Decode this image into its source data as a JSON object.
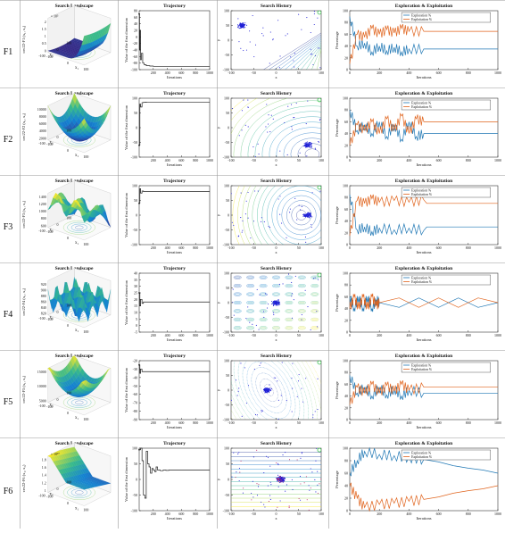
{
  "figure": {
    "row_labels": [
      "F1",
      "F2",
      "F3",
      "F4",
      "F5",
      "F6"
    ],
    "column_titles": [
      "Search Landscape",
      "Trajectory",
      "Search History",
      "Exploration & Exploitation"
    ]
  },
  "colors": {
    "trajectory_line": "#222222",
    "history_points": "#1f1fd6",
    "best_point": "#36c24a",
    "exploration": "#1f77b4",
    "exploitation": "#e0631c",
    "surface_low": "#3b1f8f",
    "surface_high": "#f7e825"
  },
  "chart_data": [
    {
      "row": "F1",
      "type": "surface",
      "title": "Search Landscape",
      "zlabel": "cec22-F1 (x₁, x₂)",
      "xlabel": "x₁",
      "ylabel": "x₂",
      "zscale_label": "× 10⁵",
      "zticks": [
        "2",
        "1.5",
        "1",
        "0.5",
        "0"
      ],
      "xticks": [
        "-100",
        "0",
        "100"
      ],
      "yticks": [
        "100",
        "0",
        "-100"
      ]
    },
    {
      "row": "F1",
      "type": "line",
      "title": "Trajectory",
      "xlabel": "Iterations",
      "ylabel": "Value of the first dimension",
      "xlim": [
        0,
        1000
      ],
      "ylim": [
        -100,
        80
      ],
      "xticks": [
        "200",
        "400",
        "600",
        "800",
        "1000"
      ],
      "yticks": [
        "80",
        "60",
        "40",
        "20",
        "0",
        "-20",
        "-40",
        "-60",
        "-80",
        "-100"
      ],
      "x": [
        0,
        5,
        10,
        20,
        30,
        50,
        70,
        100,
        150,
        200,
        1000
      ],
      "y": [
        70,
        -40,
        20,
        -70,
        -50,
        -80,
        -85,
        -88,
        -89,
        -90,
        -90
      ]
    },
    {
      "row": "F1",
      "type": "scatter",
      "title": "Search History",
      "xlabel": "x",
      "ylabel": "y",
      "xlim": [
        -100,
        100
      ],
      "ylim": [
        -100,
        100
      ],
      "xticks": [
        "-100",
        "-50",
        "0",
        "50",
        "100"
      ],
      "yticks": [
        "100",
        "50",
        "0",
        "-50",
        "-100"
      ]
    },
    {
      "row": "F1",
      "type": "line",
      "title": "Exploration & Exploitation",
      "xlabel": "Iterations",
      "ylabel": "Percentage",
      "xlim": [
        0,
        1000
      ],
      "ylim": [
        0,
        100
      ],
      "xticks": [
        "0",
        "200",
        "400",
        "600",
        "800",
        "1000"
      ],
      "yticks": [
        "100",
        "80",
        "60",
        "40",
        "20",
        "0"
      ],
      "legend": [
        "Exploration %",
        "Exploitation %"
      ],
      "x": [
        0,
        50,
        100,
        150,
        200,
        250,
        300,
        350,
        400,
        500,
        1000
      ],
      "series": [
        {
          "name": "Exploration %",
          "values": [
            90,
            40,
            45,
            30,
            40,
            32,
            38,
            30,
            35,
            35,
            35
          ]
        },
        {
          "name": "Exploitation %",
          "values": [
            10,
            60,
            55,
            70,
            60,
            68,
            62,
            70,
            65,
            65,
            65
          ]
        }
      ]
    },
    {
      "row": "F2",
      "type": "surface",
      "title": "Search Landscape",
      "zlabel": "cec22-F2 (x₁, x₂)",
      "xlabel": "x₁",
      "ylabel": "x₂",
      "zticks": [
        "10000",
        "8000",
        "6000",
        "4000",
        "2000"
      ],
      "xticks": [
        "-100",
        "0",
        "100"
      ],
      "yticks": [
        "100",
        "0",
        "-100"
      ]
    },
    {
      "row": "F2",
      "type": "line",
      "title": "Trajectory",
      "xlabel": "Iterations",
      "ylabel": "Value of the first dimension",
      "xlim": [
        0,
        1000
      ],
      "ylim": [
        -100,
        100
      ],
      "xticks": [
        "200",
        "400",
        "600",
        "800",
        "1000"
      ],
      "yticks": [
        "100",
        "50",
        "0",
        "-50",
        "-100"
      ],
      "x": [
        0,
        10,
        20,
        40,
        60,
        100,
        1000
      ],
      "y": [
        -60,
        80,
        70,
        85,
        86,
        87,
        87
      ]
    },
    {
      "row": "F2",
      "type": "scatter",
      "title": "Search History",
      "xlabel": "x",
      "ylabel": "y",
      "xlim": [
        -100,
        100
      ],
      "ylim": [
        -100,
        100
      ],
      "xticks": [
        "-100",
        "-50",
        "0",
        "50",
        "100"
      ],
      "yticks": [
        "100",
        "50",
        "0",
        "-50",
        "-100"
      ]
    },
    {
      "row": "F2",
      "type": "line",
      "title": "Exploration & Exploitation",
      "xlabel": "Iterations",
      "ylabel": "Percentage",
      "xlim": [
        0,
        1000
      ],
      "ylim": [
        0,
        100
      ],
      "xticks": [
        "0",
        "200",
        "400",
        "600",
        "800",
        "1000"
      ],
      "yticks": [
        "100",
        "80",
        "60",
        "40",
        "20",
        "0"
      ],
      "legend": [
        "Exploration %",
        "Exploitation %"
      ],
      "x": [
        0,
        50,
        100,
        150,
        200,
        250,
        300,
        350,
        400,
        450,
        500,
        1000
      ],
      "series": [
        {
          "name": "Exploration %",
          "values": [
            80,
            45,
            55,
            40,
            60,
            35,
            55,
            30,
            60,
            35,
            40,
            40
          ]
        },
        {
          "name": "Exploitation %",
          "values": [
            20,
            55,
            45,
            60,
            40,
            65,
            45,
            70,
            40,
            65,
            60,
            60
          ]
        }
      ]
    },
    {
      "row": "F3",
      "type": "surface",
      "title": "Search Landscape",
      "zlabel": "cec22-F3 (x₁, x₂)",
      "xlabel": "x₁",
      "ylabel": "x₂",
      "zticks": [
        "1400",
        "1200",
        "1000",
        "800",
        "600"
      ],
      "xticks": [
        "-100",
        "0",
        "100"
      ],
      "yticks": [
        "100",
        "0",
        "-100"
      ]
    },
    {
      "row": "F3",
      "type": "line",
      "title": "Trajectory",
      "xlabel": "Iterations",
      "ylabel": "Value of the first dimension",
      "xlim": [
        0,
        1000
      ],
      "ylim": [
        -100,
        100
      ],
      "xticks": [
        "200",
        "400",
        "600",
        "800",
        "1000"
      ],
      "yticks": [
        "100",
        "50",
        "0",
        "-50",
        "-100"
      ],
      "x": [
        0,
        10,
        20,
        40,
        60,
        100,
        1000
      ],
      "y": [
        40,
        90,
        75,
        82,
        80,
        80,
        80
      ]
    },
    {
      "row": "F3",
      "type": "scatter",
      "title": "Search History",
      "xlabel": "x",
      "ylabel": "y",
      "xlim": [
        -100,
        100
      ],
      "ylim": [
        -100,
        100
      ],
      "xticks": [
        "-100",
        "-50",
        "0",
        "50",
        "100"
      ],
      "yticks": [
        "100",
        "50",
        "0",
        "-50",
        "-100"
      ]
    },
    {
      "row": "F3",
      "type": "line",
      "title": "Exploration & Exploitation",
      "xlabel": "Iterations",
      "ylabel": "Percentage",
      "xlim": [
        0,
        1000
      ],
      "ylim": [
        0,
        100
      ],
      "xticks": [
        "0",
        "200",
        "400",
        "600",
        "800",
        "1000"
      ],
      "yticks": [
        "100",
        "80",
        "60",
        "40",
        "20",
        "0"
      ],
      "legend": [
        "Exploration %",
        "Exploitation %"
      ],
      "x": [
        0,
        50,
        100,
        150,
        200,
        300,
        400,
        500,
        520,
        1000
      ],
      "series": [
        {
          "name": "Exploration %",
          "values": [
            85,
            25,
            30,
            22,
            28,
            25,
            28,
            24,
            30,
            30
          ]
        },
        {
          "name": "Exploitation %",
          "values": [
            15,
            75,
            70,
            78,
            72,
            75,
            72,
            76,
            70,
            70
          ]
        }
      ]
    },
    {
      "row": "F4",
      "type": "surface",
      "title": "Search Landscape",
      "zlabel": "cec22-F4 (x₁, x₂)",
      "xlabel": "x₁",
      "ylabel": "x₂",
      "zticks": [
        "920",
        "900",
        "880",
        "860",
        "840",
        "820"
      ],
      "xticks": [
        "-100",
        "0",
        "100"
      ],
      "yticks": [
        "100",
        "0",
        "-100"
      ]
    },
    {
      "row": "F4",
      "type": "line",
      "title": "Trajectory",
      "xlabel": "Iterations",
      "ylabel": "Value of the first dimension",
      "xlim": [
        0,
        1000
      ],
      "ylim": [
        -5,
        40
      ],
      "xticks": [
        "200",
        "400",
        "600",
        "800",
        "1000"
      ],
      "yticks": [
        "40",
        "35",
        "30",
        "25",
        "20",
        "15",
        "10",
        "5",
        "0",
        "-5"
      ],
      "x": [
        0,
        10,
        20,
        40,
        60,
        100,
        1000
      ],
      "y": [
        25,
        15,
        20,
        17,
        18,
        18,
        18
      ]
    },
    {
      "row": "F4",
      "type": "scatter",
      "title": "Search History",
      "xlabel": "x",
      "ylabel": "y",
      "xlim": [
        -100,
        100
      ],
      "ylim": [
        -100,
        100
      ],
      "xticks": [
        "-100",
        "-50",
        "0",
        "50",
        "100"
      ],
      "yticks": [
        "100",
        "50",
        "0",
        "-50",
        "-100"
      ]
    },
    {
      "row": "F4",
      "type": "line",
      "title": "Exploration & Exploitation",
      "xlabel": "Iterations",
      "ylabel": "Percentage",
      "xlim": [
        0,
        1000
      ],
      "ylim": [
        0,
        100
      ],
      "xticks": [
        "0",
        "200",
        "400",
        "600",
        "800",
        "1000"
      ],
      "yticks": [
        "100",
        "80",
        "60",
        "40",
        "20",
        "0"
      ],
      "legend": [
        "Exploration %",
        "Exploitation %"
      ],
      "x": [
        0,
        30,
        60,
        90,
        120,
        150,
        180,
        200,
        1000
      ],
      "series": [
        {
          "name": "Exploration %",
          "values": [
            60,
            40,
            60,
            40,
            60,
            40,
            55,
            50,
            50
          ]
        },
        {
          "name": "Exploitation %",
          "values": [
            40,
            60,
            40,
            60,
            40,
            60,
            45,
            50,
            50
          ]
        }
      ]
    },
    {
      "row": "F5",
      "type": "surface",
      "title": "Search Landscape",
      "zlabel": "cec22-F5 (x₁, x₂)",
      "xlabel": "x₁",
      "ylabel": "x₂",
      "zticks": [
        "15000",
        "10000",
        "5000"
      ],
      "xticks": [
        "-100",
        "0",
        "100"
      ],
      "yticks": [
        "100",
        "0",
        "-100"
      ]
    },
    {
      "row": "F5",
      "type": "line",
      "title": "Trajectory",
      "xlabel": "Iterations",
      "ylabel": "Value of the first dimension",
      "xlim": [
        0,
        1000
      ],
      "ylim": [
        -90,
        -20
      ],
      "xticks": [
        "200",
        "400",
        "600",
        "800",
        "1000"
      ],
      "yticks": [
        "-20",
        "-30",
        "-40",
        "-50",
        "-60",
        "-70",
        "-80",
        "-90"
      ],
      "x": [
        0,
        10,
        20,
        40,
        60,
        100,
        1000
      ],
      "y": [
        -25,
        -35,
        -30,
        -33,
        -33,
        -33,
        -33
      ]
    },
    {
      "row": "F5",
      "type": "scatter",
      "title": "Search History",
      "xlabel": "x",
      "ylabel": "y",
      "xlim": [
        -100,
        100
      ],
      "ylim": [
        -100,
        100
      ],
      "xticks": [
        "-100",
        "-50",
        "0",
        "50",
        "100"
      ],
      "yticks": [
        "100",
        "50",
        "0",
        "-50",
        "-100"
      ]
    },
    {
      "row": "F5",
      "type": "line",
      "title": "Exploration & Exploitation",
      "xlabel": "Iterations",
      "ylabel": "Percentage",
      "xlim": [
        0,
        1000
      ],
      "ylim": [
        0,
        100
      ],
      "xticks": [
        "0",
        "200",
        "400",
        "600",
        "800",
        "1000"
      ],
      "yticks": [
        "100",
        "80",
        "60",
        "40",
        "20",
        "0"
      ],
      "legend": [
        "Exploration %",
        "Exploitation %"
      ],
      "x": [
        0,
        50,
        100,
        150,
        200,
        250,
        300,
        350,
        400,
        500,
        1000
      ],
      "series": [
        {
          "name": "Exploration %",
          "values": [
            75,
            45,
            55,
            40,
            55,
            42,
            52,
            40,
            50,
            45,
            45
          ]
        },
        {
          "name": "Exploitation %",
          "values": [
            25,
            55,
            45,
            60,
            45,
            58,
            48,
            60,
            50,
            55,
            55
          ]
        }
      ]
    },
    {
      "row": "F6",
      "type": "surface",
      "title": "Search Landscape",
      "zlabel": "cec22-F6 (x₁, x₂)",
      "xlabel": "x₁",
      "ylabel": "x₂",
      "zscale_label": "× 10¹⁰",
      "zticks": [
        "1.8",
        "1.6",
        "1.4",
        "1.2",
        "1"
      ],
      "xticks": [
        "-100",
        "0",
        "100"
      ],
      "yticks": [
        "100",
        "0",
        "-100"
      ]
    },
    {
      "row": "F6",
      "type": "line",
      "title": "Trajectory",
      "xlabel": "Iterations",
      "ylabel": "Value of the first dimension",
      "xlim": [
        0,
        1000
      ],
      "ylim": [
        -100,
        100
      ],
      "xticks": [
        "200",
        "400",
        "600",
        "800",
        "1000"
      ],
      "yticks": [
        "100",
        "50",
        "0",
        "-50",
        "-100"
      ],
      "x": [
        0,
        20,
        40,
        60,
        80,
        100,
        120,
        140,
        160,
        180,
        200,
        220,
        240,
        260,
        300,
        340,
        380,
        420,
        1000
      ],
      "y": [
        95,
        100,
        60,
        -50,
        -60,
        90,
        50,
        40,
        20,
        35,
        30,
        25,
        40,
        30,
        28,
        30,
        29,
        30,
        30
      ]
    },
    {
      "row": "F6",
      "type": "scatter",
      "title": "Search History",
      "xlabel": "x",
      "ylabel": "y",
      "xlim": [
        -100,
        100
      ],
      "ylim": [
        -100,
        100
      ],
      "xticks": [
        "-100",
        "-50",
        "0",
        "50",
        "100"
      ],
      "yticks": [
        "100",
        "50",
        "0",
        "-50",
        "-100"
      ]
    },
    {
      "row": "F6",
      "type": "line",
      "title": "Exploration & Exploitation",
      "xlabel": "Iterations",
      "ylabel": "Percentage",
      "xlim": [
        0,
        1000
      ],
      "ylim": [
        0,
        100
      ],
      "xticks": [
        "0",
        "200",
        "400",
        "600",
        "800",
        "1000"
      ],
      "yticks": [
        "100",
        "80",
        "60",
        "40",
        "20",
        "0"
      ],
      "legend": [
        "Exploration %",
        "Exploitation %"
      ],
      "x": [
        0,
        50,
        100,
        200,
        300,
        400,
        500,
        600,
        700,
        800,
        900,
        1000
      ],
      "series": [
        {
          "name": "Exploration %",
          "values": [
            60,
            80,
            95,
            90,
            88,
            85,
            82,
            78,
            72,
            68,
            65,
            60
          ]
        },
        {
          "name": "Exploitation %",
          "values": [
            40,
            20,
            5,
            10,
            12,
            15,
            18,
            22,
            28,
            32,
            35,
            40
          ]
        }
      ]
    }
  ]
}
